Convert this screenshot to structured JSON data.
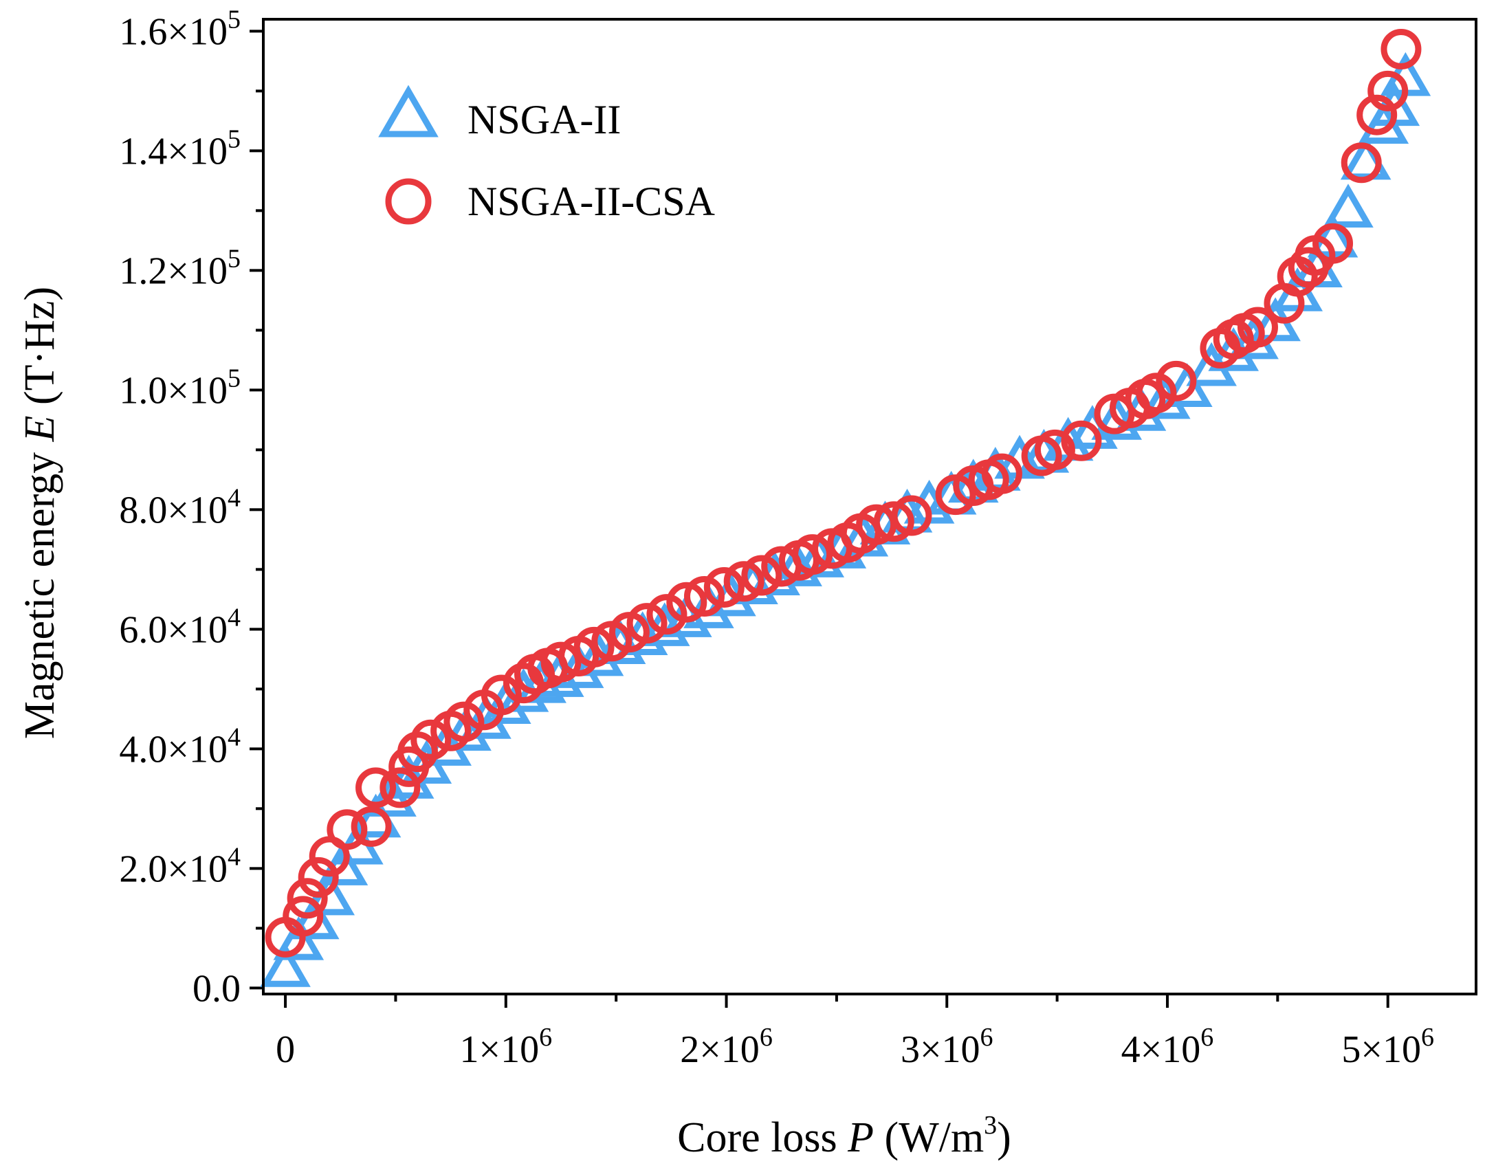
{
  "chart_data": {
    "type": "scatter",
    "xlabel_parts": [
      "Core loss ",
      "P",
      " (W/m",
      "3",
      ")"
    ],
    "ylabel_parts": [
      "Magnetic energy ",
      "E",
      " (T·Hz)"
    ],
    "xlim": [
      -100000,
      5400000
    ],
    "ylim": [
      -1000,
      162000
    ],
    "x_ticks": [
      {
        "value": 0,
        "mantissa": "0",
        "exponent": ""
      },
      {
        "value": 1000000,
        "mantissa": "1×10",
        "exponent": "6"
      },
      {
        "value": 2000000,
        "mantissa": "2×10",
        "exponent": "6"
      },
      {
        "value": 3000000,
        "mantissa": "3×10",
        "exponent": "6"
      },
      {
        "value": 4000000,
        "mantissa": "4×10",
        "exponent": "6"
      },
      {
        "value": 5000000,
        "mantissa": "5×10",
        "exponent": "6"
      }
    ],
    "y_ticks": [
      {
        "value": 0,
        "mantissa": "0.0",
        "exponent": ""
      },
      {
        "value": 20000,
        "mantissa": "2.0×10",
        "exponent": "4"
      },
      {
        "value": 40000,
        "mantissa": "4.0×10",
        "exponent": "4"
      },
      {
        "value": 60000,
        "mantissa": "6.0×10",
        "exponent": "4"
      },
      {
        "value": 80000,
        "mantissa": "8.0×10",
        "exponent": "4"
      },
      {
        "value": 100000,
        "mantissa": "1.0×10",
        "exponent": "5"
      },
      {
        "value": 120000,
        "mantissa": "1.2×10",
        "exponent": "5"
      },
      {
        "value": 140000,
        "mantissa": "1.4×10",
        "exponent": "5"
      },
      {
        "value": 160000,
        "mantissa": "1.6×10",
        "exponent": "5"
      }
    ],
    "grid": false,
    "legend_position": "top-left",
    "series": [
      {
        "name": "NSGA-II",
        "marker": "triangle",
        "color": "#4da6f0",
        "points": [
          [
            0,
            3000
          ],
          [
            60000,
            7500
          ],
          [
            130000,
            11000
          ],
          [
            200000,
            15000
          ],
          [
            260000,
            20000
          ],
          [
            330000,
            23500
          ],
          [
            410000,
            28000
          ],
          [
            480000,
            31500
          ],
          [
            560000,
            34500
          ],
          [
            640000,
            37000
          ],
          [
            730000,
            40000
          ],
          [
            820000,
            42500
          ],
          [
            910000,
            44500
          ],
          [
            1000000,
            47000
          ],
          [
            1080000,
            49000
          ],
          [
            1160000,
            50500
          ],
          [
            1240000,
            51500
          ],
          [
            1330000,
            53000
          ],
          [
            1420000,
            55000
          ],
          [
            1520000,
            57000
          ],
          [
            1620000,
            58500
          ],
          [
            1720000,
            60000
          ],
          [
            1820000,
            61500
          ],
          [
            1920000,
            63000
          ],
          [
            2020000,
            65000
          ],
          [
            2120000,
            67000
          ],
          [
            2220000,
            68500
          ],
          [
            2320000,
            70000
          ],
          [
            2420000,
            71500
          ],
          [
            2520000,
            73000
          ],
          [
            2620000,
            75000
          ],
          [
            2720000,
            77000
          ],
          [
            2820000,
            79000
          ],
          [
            2920000,
            80500
          ],
          [
            3020000,
            82000
          ],
          [
            3120000,
            84000
          ],
          [
            3220000,
            86000
          ],
          [
            3330000,
            88000
          ],
          [
            3440000,
            89000
          ],
          [
            3550000,
            91000
          ],
          [
            3660000,
            93000
          ],
          [
            3770000,
            94500
          ],
          [
            3880000,
            96000
          ],
          [
            3990000,
            98000
          ],
          [
            4090000,
            100000
          ],
          [
            4200000,
            103500
          ],
          [
            4300000,
            106000
          ],
          [
            4390000,
            108000
          ],
          [
            4490000,
            111000
          ],
          [
            4590000,
            116000
          ],
          [
            4680000,
            120000
          ],
          [
            4750000,
            125000
          ],
          [
            4820000,
            130000
          ],
          [
            4900000,
            138000
          ],
          [
            4980000,
            144000
          ],
          [
            5030000,
            147000
          ],
          [
            5080000,
            152000
          ]
        ]
      },
      {
        "name": "NSGA-II-CSA",
        "marker": "circle",
        "color": "#e8383d",
        "points": [
          [
            0,
            8500
          ],
          [
            80000,
            12000
          ],
          [
            100000,
            15000
          ],
          [
            150000,
            18500
          ],
          [
            200000,
            22000
          ],
          [
            280000,
            26500
          ],
          [
            390000,
            27000
          ],
          [
            410000,
            33500
          ],
          [
            520000,
            33500
          ],
          [
            560000,
            37000
          ],
          [
            600000,
            39500
          ],
          [
            660000,
            41500
          ],
          [
            750000,
            43000
          ],
          [
            810000,
            44500
          ],
          [
            900000,
            46500
          ],
          [
            980000,
            49000
          ],
          [
            1080000,
            51000
          ],
          [
            1130000,
            52500
          ],
          [
            1190000,
            53500
          ],
          [
            1250000,
            54500
          ],
          [
            1330000,
            55500
          ],
          [
            1400000,
            57000
          ],
          [
            1480000,
            58000
          ],
          [
            1560000,
            59500
          ],
          [
            1640000,
            61000
          ],
          [
            1730000,
            62500
          ],
          [
            1820000,
            64500
          ],
          [
            1900000,
            65500
          ],
          [
            1990000,
            67000
          ],
          [
            2080000,
            68000
          ],
          [
            2160000,
            69000
          ],
          [
            2250000,
            70500
          ],
          [
            2330000,
            71500
          ],
          [
            2390000,
            72500
          ],
          [
            2480000,
            73500
          ],
          [
            2550000,
            74500
          ],
          [
            2610000,
            76000
          ],
          [
            2680000,
            77500
          ],
          [
            2760000,
            78000
          ],
          [
            2840000,
            79000
          ],
          [
            3040000,
            82500
          ],
          [
            3120000,
            84000
          ],
          [
            3190000,
            85000
          ],
          [
            3250000,
            86000
          ],
          [
            3430000,
            89000
          ],
          [
            3490000,
            90000
          ],
          [
            3610000,
            91500
          ],
          [
            3760000,
            96000
          ],
          [
            3830000,
            97000
          ],
          [
            3900000,
            98500
          ],
          [
            3950000,
            99500
          ],
          [
            4040000,
            101500
          ],
          [
            4240000,
            107000
          ],
          [
            4300000,
            108500
          ],
          [
            4350000,
            109500
          ],
          [
            4410000,
            110500
          ],
          [
            4530000,
            114500
          ],
          [
            4590000,
            119000
          ],
          [
            4640000,
            120500
          ],
          [
            4670000,
            122500
          ],
          [
            4750000,
            124500
          ],
          [
            4880000,
            138000
          ],
          [
            4950000,
            146000
          ],
          [
            5000000,
            150000
          ],
          [
            5060000,
            157000
          ]
        ]
      }
    ]
  }
}
